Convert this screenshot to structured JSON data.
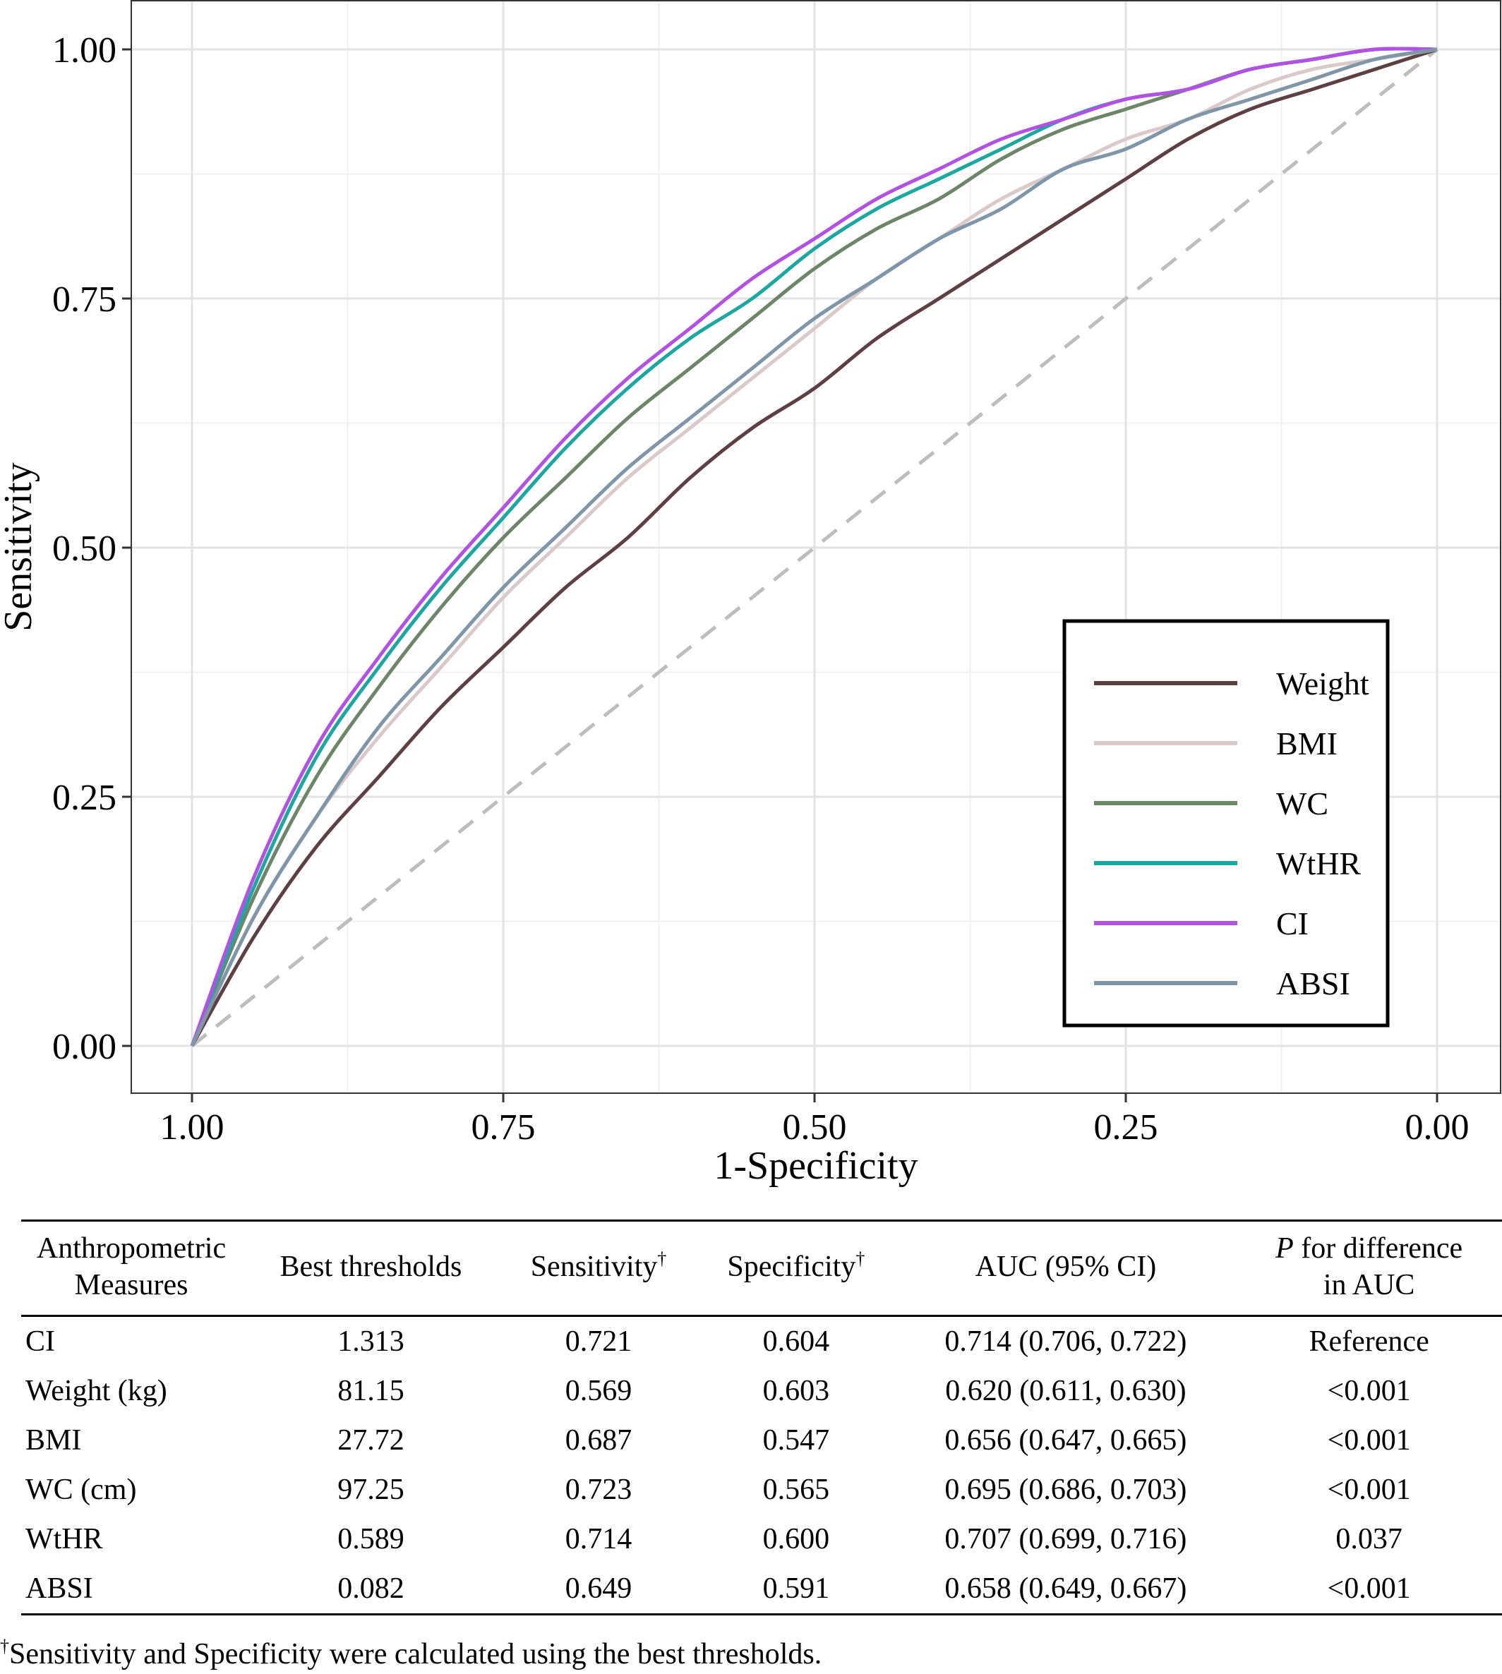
{
  "chart_data": {
    "type": "line",
    "xlabel": "1-Specificity",
    "ylabel": "Sensitivity",
    "x_axis_reversed": true,
    "xlim": [
      1.0,
      0.0
    ],
    "ylim": [
      0.0,
      1.0
    ],
    "x_ticks": [
      "1.00",
      "0.75",
      "0.50",
      "0.25",
      "0.00"
    ],
    "y_ticks": [
      "0.00",
      "0.25",
      "0.50",
      "0.75",
      "1.00"
    ],
    "grid": true,
    "legend_position": "bottom-right",
    "reference_line": {
      "style": "dashed",
      "color": "#bdbdbd",
      "from": [
        1.0,
        0.0
      ],
      "to": [
        0.0,
        1.0
      ]
    },
    "x": [
      1.0,
      0.95,
      0.9,
      0.85,
      0.8,
      0.75,
      0.7,
      0.65,
      0.6,
      0.55,
      0.5,
      0.45,
      0.4,
      0.35,
      0.3,
      0.25,
      0.2,
      0.15,
      0.1,
      0.05,
      0.0
    ],
    "series": [
      {
        "name": "Weight",
        "color": "#5c4044",
        "values": [
          0.0,
          0.11,
          0.2,
          0.27,
          0.34,
          0.4,
          0.46,
          0.51,
          0.57,
          0.62,
          0.66,
          0.71,
          0.75,
          0.79,
          0.83,
          0.87,
          0.91,
          0.94,
          0.96,
          0.98,
          1.0
        ]
      },
      {
        "name": "BMI",
        "color": "#dac9c9",
        "values": [
          0.0,
          0.13,
          0.23,
          0.31,
          0.38,
          0.45,
          0.51,
          0.57,
          0.62,
          0.67,
          0.72,
          0.77,
          0.81,
          0.85,
          0.88,
          0.91,
          0.93,
          0.96,
          0.98,
          0.99,
          1.0
        ]
      },
      {
        "name": "WC",
        "color": "#6d8568",
        "values": [
          0.0,
          0.15,
          0.27,
          0.36,
          0.44,
          0.51,
          0.57,
          0.63,
          0.68,
          0.73,
          0.78,
          0.82,
          0.85,
          0.89,
          0.92,
          0.94,
          0.96,
          0.98,
          0.99,
          1.0,
          1.0
        ]
      },
      {
        "name": "WtHR",
        "color": "#1ca8a0",
        "values": [
          0.0,
          0.16,
          0.29,
          0.38,
          0.46,
          0.53,
          0.6,
          0.66,
          0.71,
          0.75,
          0.8,
          0.84,
          0.87,
          0.9,
          0.93,
          0.95,
          0.96,
          0.98,
          0.99,
          1.0,
          1.0
        ]
      },
      {
        "name": "CI",
        "color": "#b152e3",
        "values": [
          0.0,
          0.17,
          0.3,
          0.39,
          0.47,
          0.54,
          0.61,
          0.67,
          0.72,
          0.77,
          0.81,
          0.85,
          0.88,
          0.91,
          0.93,
          0.95,
          0.96,
          0.98,
          0.99,
          1.0,
          1.0
        ]
      },
      {
        "name": "ABSI",
        "color": "#7f95a8",
        "values": [
          0.0,
          0.13,
          0.23,
          0.32,
          0.39,
          0.46,
          0.52,
          0.58,
          0.63,
          0.68,
          0.73,
          0.77,
          0.81,
          0.84,
          0.88,
          0.9,
          0.93,
          0.95,
          0.97,
          0.99,
          1.0
        ]
      }
    ]
  },
  "table": {
    "headers": {
      "measure_line1": "Anthropometric",
      "measure_line2": "Measures",
      "thresholds": "Best thresholds",
      "sensitivity": "Sensitivity",
      "specificity": "Specificity",
      "dagger": "†",
      "auc": "AUC (95% CI)",
      "p_italic": "P",
      "p_rest": " for difference",
      "p_line2": "in AUC"
    },
    "rows": [
      {
        "measure": "CI",
        "threshold": "1.313",
        "sensitivity": "0.721",
        "specificity": "0.604",
        "auc": "0.714 (0.706, 0.722)",
        "p": "Reference"
      },
      {
        "measure": "Weight (kg)",
        "threshold": "81.15",
        "sensitivity": "0.569",
        "specificity": "0.603",
        "auc": "0.620 (0.611, 0.630)",
        "p": "<0.001"
      },
      {
        "measure": "BMI",
        "threshold": "27.72",
        "sensitivity": "0.687",
        "specificity": "0.547",
        "auc": "0.656 (0.647, 0.665)",
        "p": "<0.001"
      },
      {
        "measure": "WC (cm)",
        "threshold": "97.25",
        "sensitivity": "0.723",
        "specificity": "0.565",
        "auc": "0.695 (0.686, 0.703)",
        "p": "<0.001"
      },
      {
        "measure": "WtHR",
        "threshold": "0.589",
        "sensitivity": "0.714",
        "specificity": "0.600",
        "auc": "0.707 (0.699, 0.716)",
        "p": "0.037"
      },
      {
        "measure": "ABSI",
        "threshold": "0.082",
        "sensitivity": "0.649",
        "specificity": "0.591",
        "auc": "0.658 (0.649, 0.667)",
        "p": "<0.001"
      }
    ]
  },
  "footnote": {
    "mark": "†",
    "text": "Sensitivity and Specificity were calculated using the best thresholds."
  }
}
